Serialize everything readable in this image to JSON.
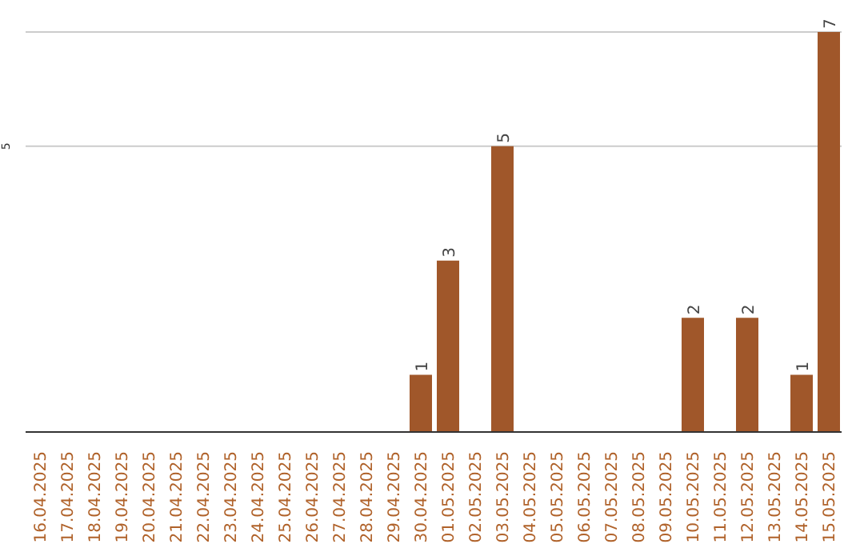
{
  "chart_data": {
    "type": "bar",
    "categories": [
      "16.04.2025",
      "17.04.2025",
      "18.04.2025",
      "19.04.2025",
      "20.04.2025",
      "21.04.2025",
      "22.04.2025",
      "23.04.2025",
      "24.04.2025",
      "25.04.2025",
      "26.04.2025",
      "27.04.2025",
      "28.04.2025",
      "29.04.2025",
      "30.04.2025",
      "01.05.2025",
      "02.05.2025",
      "03.05.2025",
      "04.05.2025",
      "05.05.2025",
      "06.05.2025",
      "07.05.2025",
      "08.05.2025",
      "09.05.2025",
      "10.05.2025",
      "11.05.2025",
      "12.05.2025",
      "13.05.2025",
      "14.05.2025",
      "15.05.2025"
    ],
    "values": [
      null,
      null,
      null,
      null,
      null,
      null,
      null,
      null,
      null,
      null,
      null,
      null,
      null,
      null,
      1,
      3,
      null,
      5,
      null,
      null,
      null,
      null,
      null,
      null,
      2,
      null,
      2,
      null,
      1,
      7
    ],
    "data_labels": true,
    "color": "#a0572a",
    "ylim": [
      0,
      7
    ],
    "yticks": [
      5
    ],
    "grid": "y",
    "legend": false
  }
}
